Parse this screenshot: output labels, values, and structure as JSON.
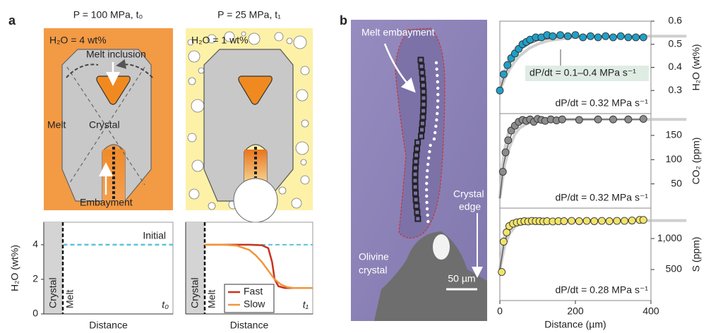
{
  "figure": {
    "panel_a": {
      "label": "a",
      "diagrams": [
        {
          "title": "P = 100 MPa, t₀",
          "composition": "H₂O = 4 wt%",
          "labels": [
            "Melt inclusion",
            "Melt",
            "Crystal",
            "Embayment"
          ]
        },
        {
          "title": "P = 25 MPa, t₁",
          "composition": "H₂O = 1 wt%"
        }
      ]
    },
    "panel_b": {
      "label": "b",
      "embayment_label": "Melt embayment",
      "olivine_label": [
        "Olivine",
        "crystal"
      ],
      "edge_label": [
        "Crystal",
        "edge"
      ],
      "scale_bar": "50 µm"
    }
  },
  "chart_data": [
    {
      "type": "line",
      "ylabel": "H₂O (wt%)",
      "xlabel": "Distance",
      "regions": [
        "Crystal",
        "Melt"
      ],
      "annotation": "t₀",
      "xlim": [
        0,
        10
      ],
      "ylim": [
        0,
        5.3
      ],
      "yticks": [
        0,
        2,
        4
      ],
      "series": [
        {
          "name": "Initial",
          "color": "#5bc4d8",
          "dashed": true,
          "x": [
            1.5,
            10
          ],
          "values": [
            4,
            4
          ]
        }
      ]
    },
    {
      "type": "line",
      "xlabel": "Distance",
      "regions": [
        "Crystal",
        "Melt"
      ],
      "annotation": "t₁",
      "xlim": [
        0,
        10
      ],
      "ylim": [
        0,
        5.3
      ],
      "legend": "bottom-left",
      "reference": {
        "value": 4,
        "color": "#5bc4d8"
      },
      "series": [
        {
          "name": "Fast",
          "color": "#c8321e",
          "x": [
            1.5,
            5,
            6,
            6.5,
            6.8,
            7,
            7.3,
            7.8,
            10
          ],
          "values": [
            4,
            4,
            3.97,
            3.8,
            3.0,
            2.0,
            1.6,
            1.5,
            1.5
          ]
        },
        {
          "name": "Slow",
          "color": "#f0963c",
          "x": [
            1.5,
            3,
            4,
            5,
            5.5,
            6,
            6.5,
            7,
            7.5,
            8,
            8.5,
            10
          ],
          "values": [
            4,
            4,
            3.95,
            3.7,
            3.4,
            3.0,
            2.5,
            2.0,
            1.7,
            1.55,
            1.5,
            1.5
          ]
        }
      ]
    },
    {
      "type": "scatter",
      "ylabel": "H₂O (wt%)",
      "xlim": [
        0,
        400
      ],
      "ylim": [
        0.2,
        0.6
      ],
      "yticks": [
        0.3,
        0.4,
        0.5,
        0.6
      ],
      "annotations": [
        "dP/dt = 0.1–0.4 MPa s⁻¹",
        "dP/dt = 0.32 MPa s⁻¹"
      ],
      "fit": {
        "color": "#555555",
        "x": [
          0,
          10,
          20,
          30,
          40,
          60,
          80,
          100,
          150,
          200,
          300,
          380
        ],
        "values": [
          0.3,
          0.352,
          0.392,
          0.424,
          0.449,
          0.483,
          0.503,
          0.516,
          0.53,
          0.533,
          0.535,
          0.535
        ]
      },
      "color": "#1fa0c8",
      "x": [
        0,
        10,
        20,
        30,
        40,
        50,
        60,
        70,
        80,
        95,
        110,
        125,
        140,
        160,
        180,
        200,
        220,
        240,
        260,
        280,
        300,
        320,
        340,
        360,
        380
      ],
      "values": [
        0.3,
        0.37,
        0.41,
        0.44,
        0.46,
        0.48,
        0.5,
        0.51,
        0.52,
        0.53,
        0.53,
        0.54,
        0.535,
        0.54,
        0.535,
        0.54,
        0.53,
        0.535,
        0.53,
        0.535,
        0.53,
        0.535,
        0.53,
        0.53,
        0.53
      ]
    },
    {
      "type": "scatter",
      "ylabel": "CO₂ (ppm)",
      "xlim": [
        0,
        400
      ],
      "ylim": [
        0,
        195
      ],
      "yticks": [
        50,
        100,
        150
      ],
      "annotations": [
        "dP/dt = 0.32 MPa s⁻¹"
      ],
      "fit": {
        "color": "#555555",
        "x": [
          0,
          10,
          20,
          30,
          40,
          60,
          80,
          100,
          150,
          200,
          380
        ],
        "values": [
          20,
          90,
          126,
          151,
          165,
          177,
          180,
          182,
          183,
          183,
          183
        ]
      },
      "color": "#8c8c8c",
      "x": [
        8,
        15,
        22,
        30,
        40,
        50,
        60,
        70,
        80,
        90,
        100,
        110,
        120,
        135,
        150,
        165,
        210,
        260,
        300,
        340,
        380
      ],
      "values": [
        75,
        115,
        140,
        160,
        170,
        178,
        182,
        180,
        183,
        178,
        184,
        182,
        180,
        183,
        181,
        183,
        182,
        183,
        183,
        183,
        184
      ]
    },
    {
      "type": "scatter",
      "ylabel": "S (ppm)",
      "xlabel": "Distance (µm)",
      "xlim": [
        0,
        400
      ],
      "xticks": [
        0,
        200,
        400
      ],
      "ylim": [
        0,
        1490
      ],
      "yticks": [
        500,
        {
          "value": 1000,
          "label": "1,000"
        }
      ],
      "annotations": [
        "dP/dt = 0.28 MPa s⁻¹"
      ],
      "fit": {
        "color": "#555555",
        "x": [
          0,
          10,
          20,
          30,
          40,
          60,
          80,
          100,
          380
        ],
        "values": [
          500,
          884,
          1080,
          1183,
          1234,
          1276,
          1287,
          1290,
          1290
        ]
      },
      "color": "#f2e36a",
      "x": [
        5,
        10,
        18,
        25,
        35,
        45,
        55,
        65,
        75,
        85,
        95,
        105,
        115,
        125,
        140,
        155,
        170,
        190,
        210,
        230,
        250,
        270,
        290,
        310,
        330,
        350,
        370,
        380
      ],
      "values": [
        460,
        950,
        1100,
        1200,
        1240,
        1260,
        1270,
        1280,
        1275,
        1285,
        1280,
        1280,
        1275,
        1280,
        1275,
        1280,
        1280,
        1285,
        1280,
        1285,
        1280,
        1285,
        1280,
        1285,
        1285,
        1290,
        1300,
        1300
      ]
    }
  ]
}
